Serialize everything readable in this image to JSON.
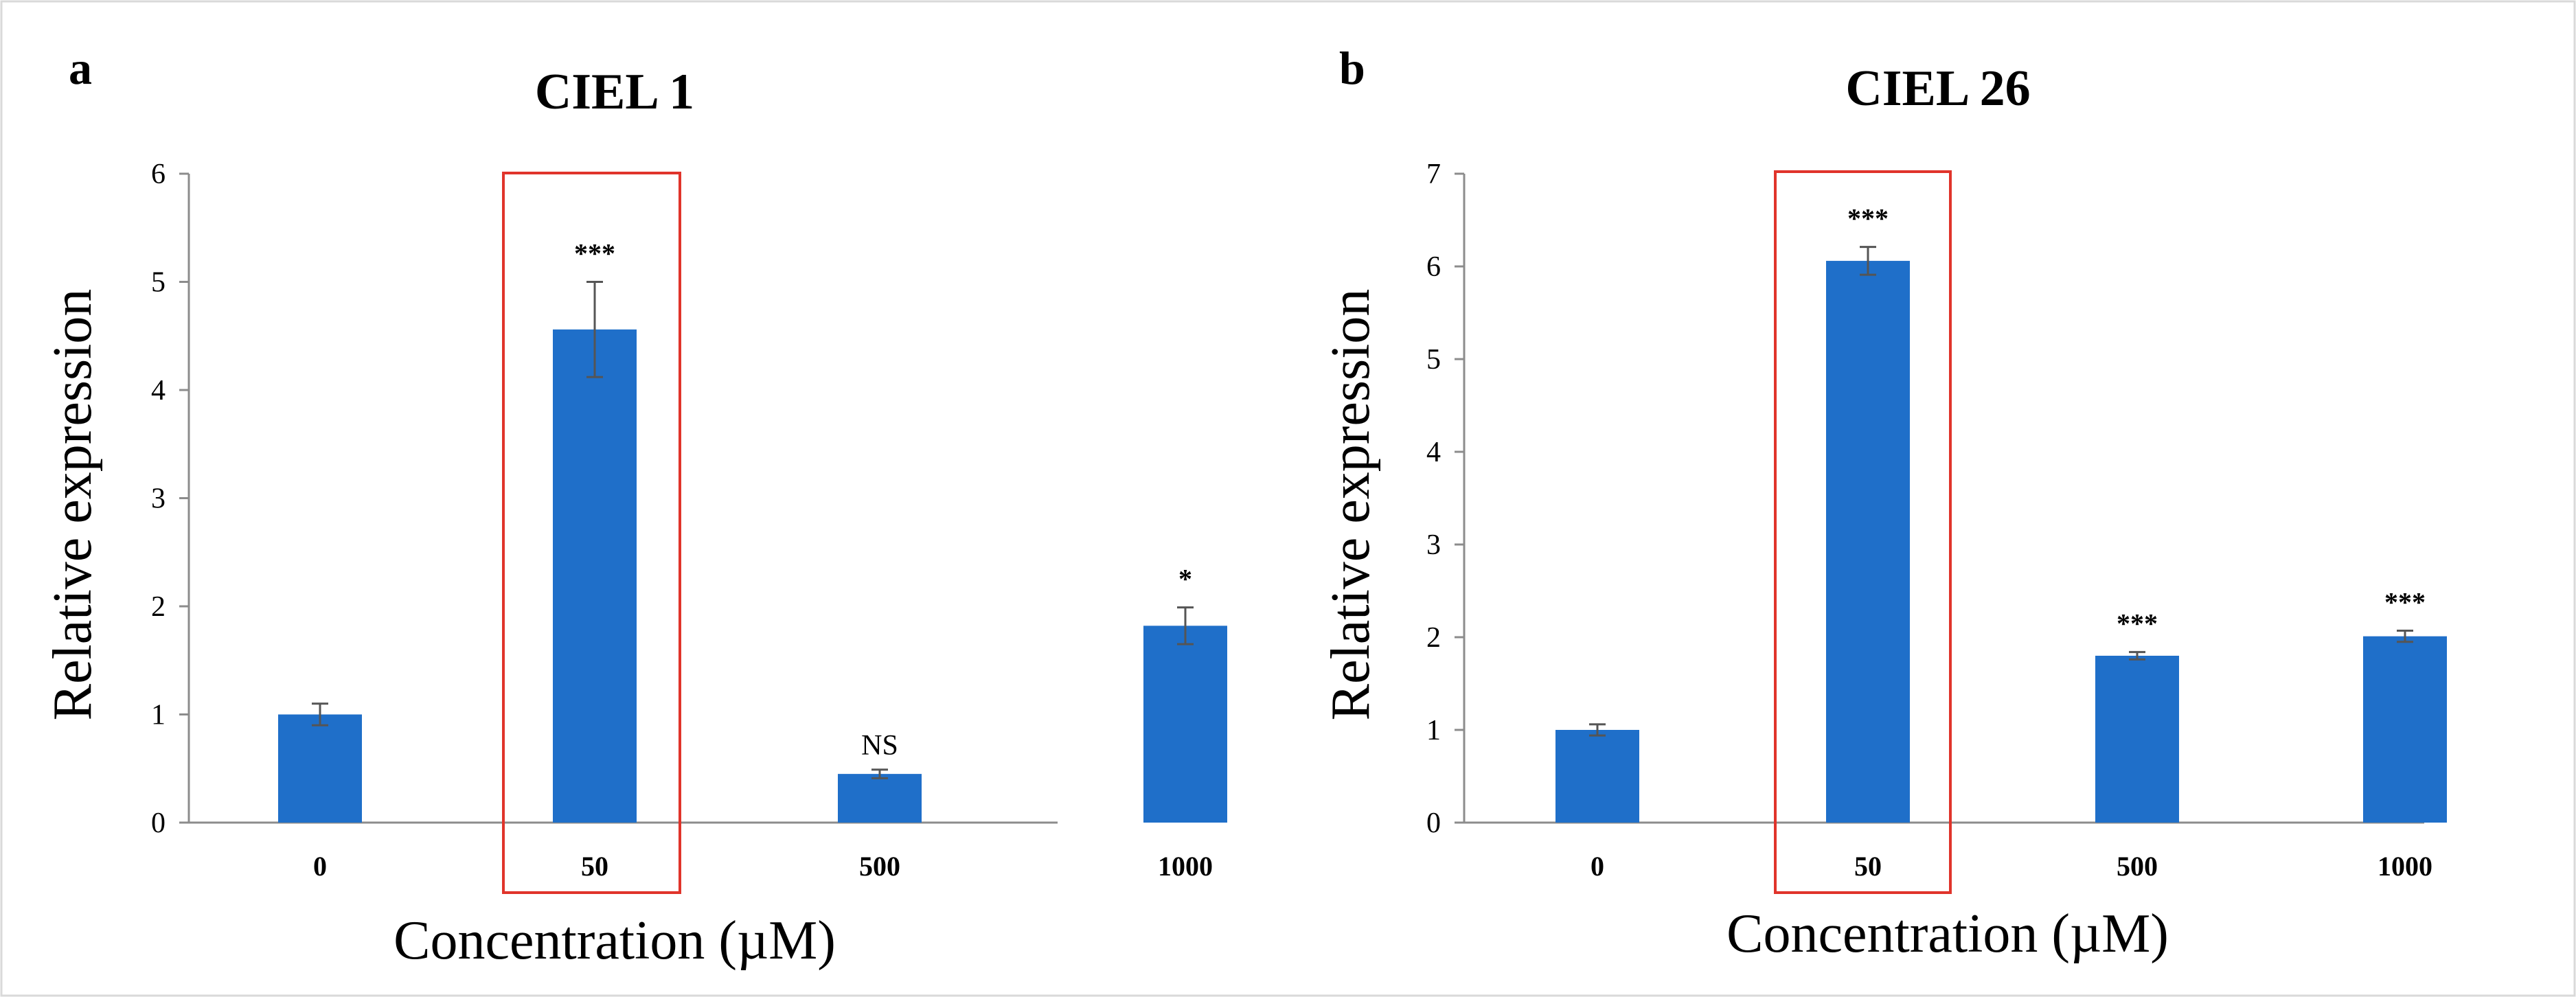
{
  "chart_data": [
    {
      "panel": "a",
      "type": "bar",
      "title": "CIEL 1",
      "xlabel": "Concentration (µM)",
      "ylabel": "Relative expression",
      "categories": [
        "0",
        "50",
        "500",
        "1000"
      ],
      "values": [
        1.0,
        4.56,
        0.45,
        1.82
      ],
      "errors": [
        0.1,
        0.44,
        0.04,
        0.17
      ],
      "significance": [
        "",
        "***",
        "NS",
        "*"
      ],
      "ylim": [
        0,
        6
      ],
      "yticks": [
        "0",
        "1",
        "2",
        "3",
        "4",
        "5",
        "6"
      ],
      "highlighted_category": "50",
      "grid": false
    },
    {
      "panel": "b",
      "type": "bar",
      "title": "CIEL 26",
      "xlabel": "Concentration (µM)",
      "ylabel": "Relative expression",
      "categories": [
        "0",
        "50",
        "500",
        "1000"
      ],
      "values": [
        1.0,
        6.06,
        1.8,
        2.01
      ],
      "errors": [
        0.06,
        0.15,
        0.04,
        0.06
      ],
      "significance": [
        "",
        "***",
        "***",
        "***"
      ],
      "ylim": [
        0,
        7
      ],
      "yticks": [
        "0",
        "1",
        "2",
        "3",
        "4",
        "5",
        "6",
        "7"
      ],
      "highlighted_category": "50",
      "grid": false
    }
  ],
  "colors": {
    "bar": "#1f6fc9",
    "error_bar": "#555555",
    "axis": "#8c8c8c",
    "highlight": "#e0342b",
    "border": "#d9d9d9"
  }
}
